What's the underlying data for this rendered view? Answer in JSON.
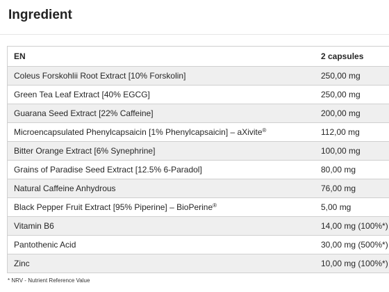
{
  "title": "Ingredient",
  "table": {
    "headers": [
      "EN",
      "2 capsules"
    ],
    "rows": [
      {
        "name": "Coleus Forskohlii Root Extract [10% Forskolin]",
        "sup": "",
        "amount": "250,00 mg"
      },
      {
        "name": "Green Tea Leaf Extract [40% EGCG]",
        "sup": "",
        "amount": "250,00 mg"
      },
      {
        "name": "Guarana Seed Extract [22% Caffeine]",
        "sup": "",
        "amount": "200,00 mg"
      },
      {
        "name": "Microencapsulated Phenylcapsaicin [1% Phenylcapsaicin] – aXivite",
        "sup": "®",
        "amount": "112,00 mg"
      },
      {
        "name": "Bitter Orange Extract [6% Synephrine]",
        "sup": "",
        "amount": "100,00 mg"
      },
      {
        "name": "Grains of Paradise Seed Extract [12.5% 6-Paradol]",
        "sup": "",
        "amount": "80,00 mg"
      },
      {
        "name": "Natural Caffeine Anhydrous",
        "sup": "",
        "amount": "76,00 mg"
      },
      {
        "name": "Black Pepper Fruit Extract [95% Piperine] – BioPerine",
        "sup": "®",
        "amount": "5,00 mg"
      },
      {
        "name": "Vitamin B6",
        "sup": "",
        "amount": "14,00 mg (100%*)"
      },
      {
        "name": "Pantothenic Acid",
        "sup": "",
        "amount": "30,00 mg (500%*)"
      },
      {
        "name": "Zinc",
        "sup": "",
        "amount": "10,00 mg (100%*)"
      }
    ]
  },
  "footnote": "* NRV - Nutrient Reference Value"
}
